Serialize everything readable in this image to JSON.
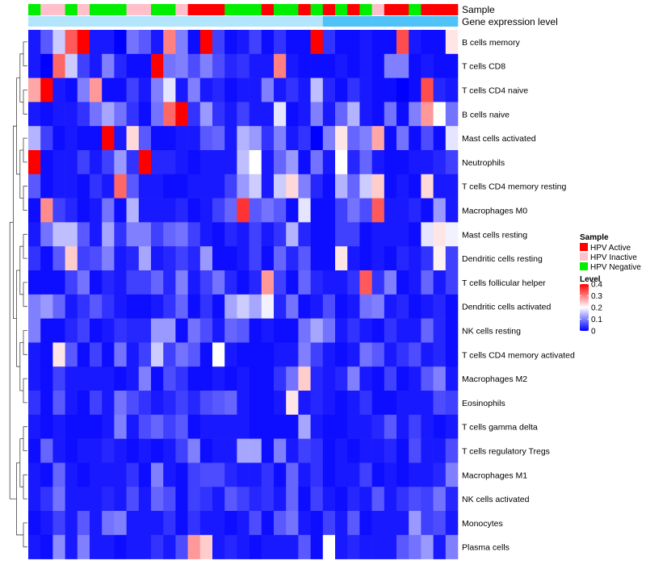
{
  "chart_data": {
    "type": "heatmap",
    "annotations": {
      "sample_label": "Sample",
      "expression_label": "Gene expression level"
    },
    "rows": [
      "B cells memory",
      "T cells CD8",
      "T cells CD4 naive",
      "B cells naive",
      "Mast cells activated",
      "Neutrophils",
      "T cells CD4 memory resting",
      "Macrophages M0",
      "Mast cells resting",
      "Dendritic cells resting",
      "T cells follicular helper",
      "Dendritic cells activated",
      "NK cells resting",
      "T cells CD4 memory activated",
      "Macrophages M2",
      "Eosinophils",
      "T cells gamma delta",
      "T cells regulatory  Tregs",
      "Macrophages M1",
      "NK cells activated",
      "Monocytes",
      "Plasma cells"
    ],
    "column_sample_groups": [
      "Negative",
      "Inactive",
      "Inactive",
      "Negative",
      "Inactive",
      "Negative",
      "Negative",
      "Negative",
      "Inactive",
      "Inactive",
      "Negative",
      "Negative",
      "Inactive",
      "Active",
      "Active",
      "Active",
      "Negative",
      "Negative",
      "Negative",
      "Active",
      "Negative",
      "Negative",
      "Active",
      "Negative",
      "Active",
      "Negative",
      "Active",
      "Negative",
      "Inactive",
      "Active",
      "Active",
      "Negative",
      "Active",
      "Active",
      "Active"
    ],
    "column_expression_level": [
      0.6,
      0.6,
      0.6,
      0.6,
      0.6,
      0.6,
      0.6,
      0.6,
      0.6,
      0.6,
      0.6,
      0.6,
      0.6,
      0.6,
      0.6,
      0.6,
      0.6,
      0.6,
      0.6,
      0.6,
      0.6,
      0.6,
      0.6,
      0.6,
      1,
      1,
      1,
      1,
      1,
      1,
      1,
      1,
      1,
      1,
      1
    ],
    "values": [
      [
        0.02,
        0.07,
        0.16,
        0.33,
        0.4,
        0.02,
        0.02,
        0.0,
        0.09,
        0.07,
        0.02,
        0.3,
        0.1,
        0.01,
        0.4,
        0.05,
        0.01,
        0.02,
        0.05,
        0.01,
        0.04,
        0.01,
        0.01,
        0.4,
        0.04,
        0.01,
        0.01,
        0.02,
        0.01,
        0.01,
        0.34,
        0.02,
        0.01,
        0.01,
        0.22
      ],
      [
        0.02,
        0.0,
        0.32,
        0.16,
        0.05,
        0.02,
        0.1,
        0.03,
        0.01,
        0.01,
        0.4,
        0.09,
        0.1,
        0.06,
        0.1,
        0.06,
        0.03,
        0.04,
        0.02,
        0.02,
        0.3,
        0.02,
        0.01,
        0.01,
        0.01,
        0.02,
        0.01,
        0.02,
        0.01,
        0.1,
        0.1,
        0.01,
        0.02,
        0.01,
        0.01
      ],
      [
        0.27,
        0.4,
        0.02,
        0.01,
        0.1,
        0.28,
        0.01,
        0.01,
        0.05,
        0.02,
        0.1,
        0.18,
        0.02,
        0.1,
        0.02,
        0.03,
        0.01,
        0.02,
        0.02,
        0.1,
        0.02,
        0.04,
        0.02,
        0.15,
        0.03,
        0.01,
        0.04,
        0.02,
        0.01,
        0.01,
        0.0,
        0.01,
        0.34,
        0.03,
        0.02
      ],
      [
        0.02,
        0.01,
        0.02,
        0.02,
        0.04,
        0.09,
        0.13,
        0.09,
        0.04,
        0.01,
        0.09,
        0.32,
        0.4,
        0.04,
        0.12,
        0.04,
        0.02,
        0.05,
        0.02,
        0.02,
        0.18,
        0.01,
        0.02,
        0.1,
        0.02,
        0.08,
        0.14,
        0.02,
        0.01,
        0.09,
        0.01,
        0.1,
        0.28,
        0.2,
        0.09
      ],
      [
        0.14,
        0.05,
        0.01,
        0.02,
        0.01,
        0.01,
        0.4,
        0.02,
        0.23,
        0.07,
        0.01,
        0.01,
        0.02,
        0.02,
        0.07,
        0.08,
        0.02,
        0.14,
        0.12,
        0.04,
        0.1,
        0.02,
        0.04,
        0.0,
        0.1,
        0.22,
        0.08,
        0.1,
        0.27,
        0.01,
        0.09,
        0.01,
        0.06,
        0.01,
        0.18
      ],
      [
        0.4,
        0.01,
        0.02,
        0.02,
        0.05,
        0.02,
        0.05,
        0.12,
        0.04,
        0.4,
        0.03,
        0.03,
        0.02,
        0.01,
        0.02,
        0.02,
        0.02,
        0.15,
        0.2,
        0.02,
        0.08,
        0.12,
        0.01,
        0.09,
        0.02,
        0.2,
        0.03,
        0.08,
        0.02,
        0.01,
        0.01,
        0.02,
        0.02,
        0.03,
        0.05
      ],
      [
        0.07,
        0.01,
        0.02,
        0.02,
        0.01,
        0.04,
        0.02,
        0.32,
        0.07,
        0.02,
        0.02,
        0.01,
        0.01,
        0.02,
        0.02,
        0.02,
        0.05,
        0.12,
        0.16,
        0.02,
        0.16,
        0.23,
        0.1,
        0.03,
        0.01,
        0.14,
        0.08,
        0.16,
        0.24,
        0.01,
        0.02,
        0.01,
        0.23,
        0.02,
        0.02
      ],
      [
        0.01,
        0.29,
        0.05,
        0.03,
        0.01,
        0.02,
        0.09,
        0.01,
        0.14,
        0.02,
        0.02,
        0.02,
        0.03,
        0.01,
        0.02,
        0.05,
        0.08,
        0.36,
        0.07,
        0.09,
        0.07,
        0.01,
        0.18,
        0.01,
        0.01,
        0.05,
        0.09,
        0.06,
        0.33,
        0.02,
        0.02,
        0.03,
        0.01,
        0.12,
        0.02
      ],
      [
        0.02,
        0.09,
        0.15,
        0.15,
        0.07,
        0.02,
        0.13,
        0.04,
        0.1,
        0.1,
        0.05,
        0.08,
        0.09,
        0.05,
        0.02,
        0.01,
        0.03,
        0.02,
        0.05,
        0.02,
        0.04,
        0.14,
        0.03,
        0.01,
        0.01,
        0.05,
        0.05,
        0.01,
        0.02,
        0.02,
        0.02,
        0.01,
        0.18,
        0.22,
        0.19
      ],
      [
        0.04,
        0.01,
        0.07,
        0.24,
        0.05,
        0.06,
        0.1,
        0.02,
        0.03,
        0.13,
        0.02,
        0.03,
        0.05,
        0.03,
        0.12,
        0.01,
        0.01,
        0.02,
        0.05,
        0.01,
        0.08,
        0.03,
        0.07,
        0.01,
        0.01,
        0.22,
        0.02,
        0.01,
        0.02,
        0.01,
        0.03,
        0.02,
        0.04,
        0.21,
        0.05
      ],
      [
        0.01,
        0.01,
        0.01,
        0.05,
        0.09,
        0.01,
        0.03,
        0.02,
        0.05,
        0.05,
        0.08,
        0.03,
        0.1,
        0.02,
        0.05,
        0.09,
        0.03,
        0.01,
        0.03,
        0.28,
        0.05,
        0.01,
        0.08,
        0.03,
        0.02,
        0.02,
        0.04,
        0.33,
        0.04,
        0.1,
        0.01,
        0.02,
        0.08,
        0.02,
        0.05
      ],
      [
        0.1,
        0.12,
        0.08,
        0.02,
        0.04,
        0.07,
        0.04,
        0.02,
        0.01,
        0.01,
        0.02,
        0.04,
        0.08,
        0.01,
        0.04,
        0.01,
        0.13,
        0.16,
        0.13,
        0.19,
        0.03,
        0.09,
        0.01,
        0.02,
        0.06,
        0.01,
        0.02,
        0.09,
        0.1,
        0.02,
        0.03,
        0.01,
        0.02,
        0.03,
        0.01
      ],
      [
        0.1,
        0.01,
        0.01,
        0.03,
        0.05,
        0.01,
        0.02,
        0.04,
        0.03,
        0.03,
        0.12,
        0.12,
        0.01,
        0.09,
        0.06,
        0.02,
        0.08,
        0.07,
        0.01,
        0.02,
        0.01,
        0.01,
        0.09,
        0.13,
        0.09,
        0.02,
        0.04,
        0.02,
        0.01,
        0.04,
        0.02,
        0.02,
        0.08,
        0.03,
        0.01
      ],
      [
        0.02,
        0.01,
        0.22,
        0.07,
        0.01,
        0.05,
        0.01,
        0.09,
        0.02,
        0.05,
        0.16,
        0.05,
        0.09,
        0.07,
        0.01,
        0.2,
        0.02,
        0.01,
        0.01,
        0.01,
        0.02,
        0.02,
        0.1,
        0.05,
        0.02,
        0.01,
        0.02,
        0.09,
        0.07,
        0.02,
        0.04,
        0.06,
        0.02,
        0.03,
        0.01
      ],
      [
        0.02,
        0.01,
        0.05,
        0.02,
        0.02,
        0.02,
        0.02,
        0.01,
        0.02,
        0.1,
        0.01,
        0.06,
        0.04,
        0.01,
        0.01,
        0.02,
        0.01,
        0.02,
        0.01,
        0.01,
        0.04,
        0.09,
        0.24,
        0.03,
        0.02,
        0.03,
        0.1,
        0.02,
        0.01,
        0.05,
        0.01,
        0.02,
        0.07,
        0.1,
        0.02
      ],
      [
        0.04,
        0.01,
        0.07,
        0.02,
        0.01,
        0.05,
        0.02,
        0.09,
        0.06,
        0.04,
        0.02,
        0.03,
        0.05,
        0.03,
        0.06,
        0.07,
        0.08,
        0.02,
        0.01,
        0.01,
        0.02,
        0.22,
        0.02,
        0.03,
        0.02,
        0.01,
        0.02,
        0.04,
        0.01,
        0.01,
        0.02,
        0.02,
        0.02,
        0.06,
        0.05
      ],
      [
        0.02,
        0.01,
        0.02,
        0.01,
        0.01,
        0.01,
        0.02,
        0.1,
        0.02,
        0.06,
        0.08,
        0.05,
        0.07,
        0.01,
        0.02,
        0.02,
        0.02,
        0.02,
        0.01,
        0.01,
        0.01,
        0.01,
        0.13,
        0.02,
        0.01,
        0.01,
        0.02,
        0.02,
        0.03,
        0.07,
        0.02,
        0.05,
        0.02,
        0.01,
        0.02
      ],
      [
        0.01,
        0.08,
        0.02,
        0.01,
        0.02,
        0.02,
        0.03,
        0.02,
        0.01,
        0.02,
        0.01,
        0.02,
        0.05,
        0.1,
        0.01,
        0.02,
        0.02,
        0.13,
        0.13,
        0.01,
        0.1,
        0.02,
        0.05,
        0.04,
        0.01,
        0.02,
        0.01,
        0.02,
        0.02,
        0.03,
        0.01,
        0.06,
        0.02,
        0.02,
        0.06
      ],
      [
        0.02,
        0.01,
        0.08,
        0.02,
        0.01,
        0.02,
        0.02,
        0.02,
        0.04,
        0.01,
        0.1,
        0.02,
        0.01,
        0.05,
        0.06,
        0.06,
        0.03,
        0.02,
        0.02,
        0.04,
        0.01,
        0.08,
        0.02,
        0.04,
        0.01,
        0.02,
        0.02,
        0.05,
        0.01,
        0.02,
        0.01,
        0.02,
        0.02,
        0.03,
        0.1
      ],
      [
        0.02,
        0.04,
        0.09,
        0.02,
        0.02,
        0.02,
        0.03,
        0.02,
        0.06,
        0.02,
        0.08,
        0.06,
        0.01,
        0.05,
        0.04,
        0.02,
        0.07,
        0.05,
        0.03,
        0.04,
        0.02,
        0.08,
        0.01,
        0.05,
        0.02,
        0.01,
        0.03,
        0.02,
        0.07,
        0.02,
        0.04,
        0.06,
        0.05,
        0.09,
        0.03
      ],
      [
        0.01,
        0.02,
        0.05,
        0.02,
        0.07,
        0.02,
        0.09,
        0.1,
        0.02,
        0.02,
        0.02,
        0.04,
        0.01,
        0.04,
        0.02,
        0.02,
        0.01,
        0.02,
        0.06,
        0.01,
        0.07,
        0.09,
        0.02,
        0.01,
        0.05,
        0.02,
        0.07,
        0.01,
        0.02,
        0.02,
        0.02,
        0.12,
        0.05,
        0.06,
        0.02
      ],
      [
        0.02,
        0.01,
        0.11,
        0.02,
        0.1,
        0.02,
        0.02,
        0.01,
        0.02,
        0.02,
        0.04,
        0.02,
        0.06,
        0.28,
        0.24,
        0.02,
        0.03,
        0.02,
        0.01,
        0.02,
        0.02,
        0.02,
        0.07,
        0.01,
        0.2,
        0.02,
        0.03,
        0.02,
        0.02,
        0.02,
        0.07,
        0.09,
        0.12,
        0.02,
        0.1
      ]
    ],
    "legend": {
      "sample": {
        "title": "Sample",
        "entries": [
          {
            "key": "Active",
            "label": "HPV Active",
            "color": "#ff0000"
          },
          {
            "key": "Inactive",
            "label": "HPV Inactive",
            "color": "#ffc0cb"
          },
          {
            "key": "Negative",
            "label": "HPV Negative",
            "color": "#00ee00"
          }
        ]
      },
      "level": {
        "title": "Level",
        "min": 0,
        "max": 0.4,
        "ticks": [
          0.4,
          0.3,
          0.2,
          0.1,
          0
        ],
        "tick_labels": [
          "0.4",
          "0.3",
          "0.2",
          "0.1",
          "0"
        ],
        "colors": [
          "#0000ff",
          "#ffffff",
          "#ff0000"
        ]
      }
    }
  }
}
